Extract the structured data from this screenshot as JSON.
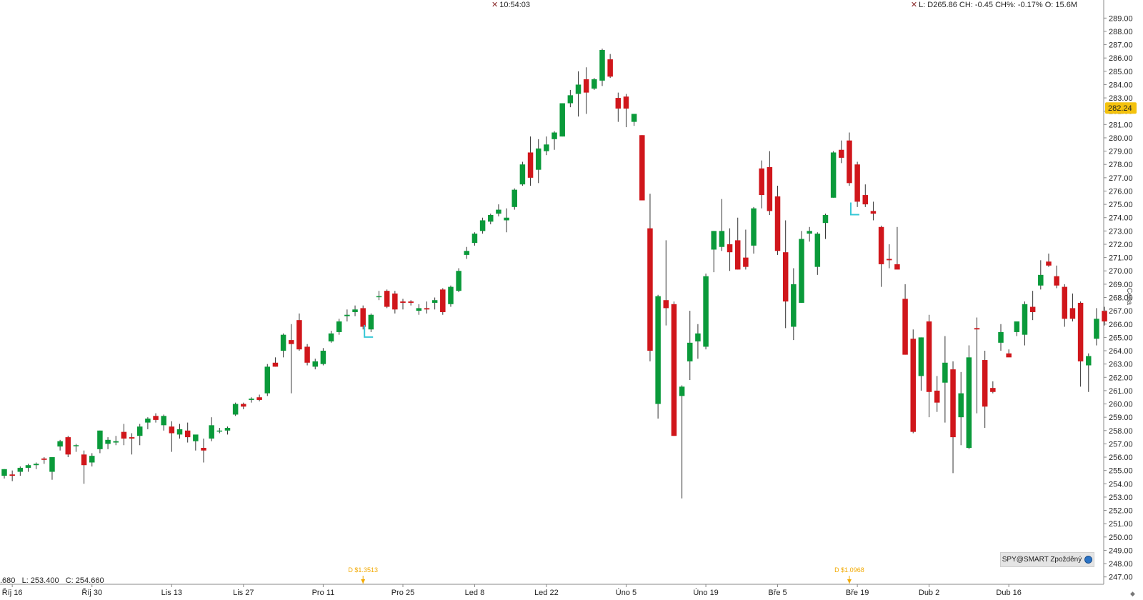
{
  "header": {
    "time_readout": "10:54:03",
    "ohlc_readout": "L: D265.86 CH: -0.45 CH%: -0.17% O: 15.6M",
    "close_icon": "x-icon"
  },
  "bottom_readout": ".680   L: 253.400   C: 254.660",
  "instrument_badge": {
    "label": "SPY@SMART Zpožděný",
    "icon": "globe-icon"
  },
  "price_axis_title": "Cena",
  "colors": {
    "up": "#0a9a3a",
    "down": "#d0161b",
    "wick": "#333333",
    "last_price_bg": "#f4c20d",
    "dividend": "#f2a900",
    "marker": "#35c7d6"
  },
  "chart_data": {
    "type": "candlestick",
    "ylim": [
      246.5,
      289.5
    ],
    "y_ticks": [
      "289.00",
      "288.00",
      "287.00",
      "286.00",
      "285.00",
      "284.00",
      "283.00",
      "282.00",
      "281.00",
      "280.00",
      "279.00",
      "278.00",
      "277.00",
      "276.00",
      "275.00",
      "274.00",
      "273.00",
      "272.00",
      "271.00",
      "270.00",
      "269.00",
      "268.00",
      "267.00",
      "266.00",
      "265.00",
      "264.00",
      "263.00",
      "262.00",
      "261.00",
      "260.00",
      "259.00",
      "258.00",
      "257.00",
      "256.00",
      "255.00",
      "254.00",
      "253.00",
      "252.00",
      "251.00",
      "250.00",
      "249.00",
      "248.00",
      "247.00"
    ],
    "x_labels": [
      {
        "label": "Říj 16",
        "bar": 1
      },
      {
        "label": "Říj 30",
        "bar": 11
      },
      {
        "label": "Lis 13",
        "bar": 21
      },
      {
        "label": "Lis 27",
        "bar": 30
      },
      {
        "label": "Pro 11",
        "bar": 40
      },
      {
        "label": "Pro 25",
        "bar": 50
      },
      {
        "label": "Led 8",
        "bar": 59
      },
      {
        "label": "Led 22",
        "bar": 68
      },
      {
        "label": "Úno 5",
        "bar": 78
      },
      {
        "label": "Úno 19",
        "bar": 88
      },
      {
        "label": "Bře 5",
        "bar": 97
      },
      {
        "label": "Bře 19",
        "bar": 107
      },
      {
        "label": "Dub 2",
        "bar": 116
      },
      {
        "label": "Dub 16",
        "bar": 126
      }
    ],
    "last_price": "282.24",
    "dividends": [
      {
        "label": "D $1.3513",
        "bar": 45
      },
      {
        "label": "D $1.0968",
        "bar": 106
      }
    ],
    "markers": [
      {
        "bar": 45,
        "price": 265.4
      },
      {
        "bar": 106,
        "price": 274.6
      }
    ],
    "ohlc": [
      [
        254.6,
        255.1,
        254.4,
        255.1
      ],
      [
        254.7,
        255.0,
        254.2,
        254.6
      ],
      [
        254.9,
        255.3,
        254.6,
        255.2
      ],
      [
        255.2,
        255.5,
        254.9,
        255.4
      ],
      [
        255.4,
        255.6,
        255.1,
        255.5
      ],
      [
        255.9,
        256.0,
        255.5,
        255.8
      ],
      [
        254.9,
        256.0,
        254.3,
        256.0
      ],
      [
        256.8,
        257.3,
        256.5,
        257.2
      ],
      [
        257.5,
        257.6,
        256.0,
        256.2
      ],
      [
        256.9,
        257.0,
        256.4,
        256.9
      ],
      [
        256.2,
        256.5,
        254.0,
        255.4
      ],
      [
        255.6,
        256.3,
        255.3,
        256.1
      ],
      [
        256.6,
        258.0,
        256.3,
        258.0
      ],
      [
        257.0,
        257.5,
        256.6,
        257.3
      ],
      [
        257.1,
        257.6,
        256.9,
        257.2
      ],
      [
        257.9,
        258.5,
        256.9,
        257.4
      ],
      [
        257.5,
        257.8,
        256.2,
        257.4
      ],
      [
        257.6,
        258.5,
        256.9,
        258.3
      ],
      [
        258.6,
        259.0,
        258.1,
        258.9
      ],
      [
        259.1,
        259.3,
        258.6,
        258.8
      ],
      [
        258.4,
        259.2,
        258.0,
        259.1
      ],
      [
        258.3,
        258.7,
        256.4,
        257.8
      ],
      [
        257.7,
        258.5,
        257.4,
        258.1
      ],
      [
        258.0,
        258.6,
        257.1,
        257.5
      ],
      [
        257.2,
        257.6,
        256.5,
        257.7
      ],
      [
        256.7,
        257.4,
        255.6,
        256.5
      ],
      [
        257.4,
        259.0,
        257.2,
        258.4
      ],
      [
        258.0,
        258.2,
        257.8,
        258.0
      ],
      [
        258.0,
        258.3,
        257.7,
        258.2
      ],
      [
        259.2,
        260.1,
        259.1,
        260.0
      ],
      [
        260.0,
        260.1,
        259.6,
        259.8
      ],
      [
        260.3,
        260.5,
        260.1,
        260.4
      ],
      [
        260.5,
        260.7,
        260.2,
        260.3
      ],
      [
        260.8,
        263.0,
        260.6,
        262.8
      ],
      [
        263.1,
        263.5,
        262.8,
        262.8
      ],
      [
        264.0,
        265.3,
        263.5,
        265.2
      ],
      [
        264.8,
        266.0,
        260.8,
        264.5
      ],
      [
        266.3,
        266.8,
        264.0,
        264.1
      ],
      [
        264.3,
        264.5,
        262.9,
        263.1
      ],
      [
        262.8,
        263.4,
        262.6,
        263.2
      ],
      [
        263.0,
        264.2,
        262.9,
        264.0
      ],
      [
        264.7,
        265.5,
        264.6,
        265.3
      ],
      [
        265.4,
        266.4,
        265.2,
        266.2
      ],
      [
        266.6,
        267.1,
        266.2,
        266.7
      ],
      [
        266.9,
        267.4,
        266.6,
        267.1
      ],
      [
        267.2,
        267.4,
        265.6,
        265.8
      ],
      [
        265.6,
        266.8,
        265.4,
        266.7
      ],
      [
        268.1,
        268.5,
        267.8,
        268.1
      ],
      [
        268.5,
        268.6,
        267.2,
        267.3
      ],
      [
        268.3,
        268.5,
        266.8,
        267.1
      ],
      [
        267.7,
        267.9,
        267.1,
        267.6
      ],
      [
        267.7,
        267.8,
        267.4,
        267.6
      ],
      [
        267.0,
        267.5,
        266.7,
        267.2
      ],
      [
        267.2,
        267.7,
        266.8,
        267.1
      ],
      [
        267.6,
        268.0,
        267.1,
        267.8
      ],
      [
        268.6,
        268.7,
        266.7,
        266.9
      ],
      [
        267.5,
        268.9,
        267.3,
        268.8
      ],
      [
        268.5,
        270.2,
        268.4,
        270.0
      ],
      [
        271.2,
        271.8,
        270.9,
        271.5
      ],
      [
        272.1,
        272.9,
        271.9,
        272.8
      ],
      [
        273.0,
        274.0,
        272.8,
        273.8
      ],
      [
        273.7,
        274.3,
        273.5,
        274.2
      ],
      [
        274.3,
        275.0,
        274.1,
        274.6
      ],
      [
        273.8,
        274.7,
        272.9,
        274.0
      ],
      [
        274.8,
        276.2,
        274.6,
        276.1
      ],
      [
        276.5,
        278.2,
        276.4,
        278.0
      ],
      [
        278.9,
        280.1,
        276.4,
        277.0
      ],
      [
        277.6,
        279.9,
        276.6,
        279.2
      ],
      [
        279.0,
        280.1,
        278.7,
        279.5
      ],
      [
        279.9,
        280.5,
        279.1,
        280.4
      ],
      [
        280.1,
        282.6,
        280.1,
        282.6
      ],
      [
        282.6,
        283.6,
        282.3,
        283.2
      ],
      [
        283.3,
        285.0,
        281.6,
        284.0
      ],
      [
        284.4,
        285.3,
        281.8,
        283.4
      ],
      [
        283.7,
        284.5,
        283.6,
        284.4
      ],
      [
        284.3,
        286.7,
        283.9,
        286.6
      ],
      [
        285.9,
        286.3,
        284.5,
        284.6
      ],
      [
        283.0,
        283.4,
        281.2,
        282.2
      ],
      [
        283.1,
        283.3,
        280.8,
        282.2
      ],
      [
        281.2,
        281.7,
        280.9,
        281.8
      ],
      [
        280.2,
        280.2,
        275.3,
        275.3
      ],
      [
        273.2,
        275.8,
        263.2,
        264.0
      ],
      [
        260.0,
        268.2,
        258.9,
        268.1
      ],
      [
        267.8,
        272.3,
        265.9,
        267.2
      ],
      [
        267.5,
        267.7,
        257.6,
        257.6
      ],
      [
        260.6,
        261.4,
        252.9,
        261.3
      ],
      [
        263.2,
        267.0,
        261.8,
        264.6
      ],
      [
        264.7,
        266.0,
        263.4,
        265.3
      ],
      [
        264.3,
        269.8,
        264.1,
        269.6
      ],
      [
        271.6,
        273.0,
        269.9,
        273.0
      ],
      [
        271.8,
        275.4,
        271.5,
        273.0
      ],
      [
        272.0,
        273.2,
        270.0,
        271.4
      ],
      [
        272.3,
        274.0,
        270.1,
        270.1
      ],
      [
        271.0,
        273.1,
        270.1,
        270.3
      ],
      [
        271.9,
        274.8,
        271.3,
        274.7
      ],
      [
        277.7,
        278.3,
        274.7,
        275.7
      ],
      [
        277.8,
        279.0,
        274.2,
        274.5
      ],
      [
        275.6,
        276.4,
        271.2,
        271.5
      ],
      [
        271.4,
        273.8,
        265.7,
        267.7
      ],
      [
        265.8,
        270.2,
        264.8,
        269.0
      ],
      [
        267.6,
        273.0,
        267.6,
        272.4
      ],
      [
        272.8,
        273.3,
        272.2,
        273.0
      ],
      [
        270.3,
        272.9,
        269.7,
        272.8
      ],
      [
        273.6,
        274.3,
        272.4,
        274.2
      ],
      [
        275.5,
        279.0,
        275.5,
        278.9
      ],
      [
        279.1,
        279.8,
        278.1,
        278.5
      ],
      [
        279.8,
        280.4,
        276.4,
        276.6
      ],
      [
        278.0,
        278.2,
        274.8,
        275.2
      ],
      [
        275.7,
        276.5,
        274.8,
        275.0
      ],
      [
        274.5,
        275.2,
        273.8,
        274.3
      ],
      [
        273.3,
        273.4,
        268.8,
        270.5
      ],
      [
        270.9,
        272.0,
        270.2,
        270.8
      ],
      [
        270.5,
        273.3,
        270.2,
        270.1
      ],
      [
        267.9,
        269.0,
        263.7,
        263.7
      ],
      [
        264.9,
        265.6,
        257.8,
        257.9
      ],
      [
        262.1,
        265.0,
        261.0,
        265.0
      ],
      [
        266.2,
        266.7,
        259.0,
        260.9
      ],
      [
        261.0,
        262.1,
        259.4,
        260.1
      ],
      [
        261.6,
        265.1,
        258.6,
        263.1
      ],
      [
        262.6,
        263.2,
        254.8,
        257.5
      ],
      [
        259.0,
        262.4,
        256.9,
        260.8
      ],
      [
        256.7,
        264.4,
        256.6,
        263.5
      ],
      [
        265.7,
        266.5,
        259.3,
        265.6
      ],
      [
        263.3,
        264.0,
        258.2,
        259.8
      ],
      [
        261.2,
        261.7,
        260.8,
        260.9
      ],
      [
        264.6,
        266.0,
        264.0,
        265.4
      ],
      [
        263.8,
        264.1,
        263.6,
        263.5
      ],
      [
        265.4,
        266.0,
        265.1,
        266.2
      ],
      [
        265.2,
        267.7,
        264.4,
        267.5
      ],
      [
        267.3,
        268.5,
        266.3,
        266.9
      ],
      [
        268.9,
        270.8,
        268.6,
        269.7
      ],
      [
        270.7,
        271.3,
        270.3,
        270.4
      ],
      [
        269.6,
        270.4,
        268.7,
        268.9
      ],
      [
        268.8,
        269.0,
        265.8,
        266.4
      ],
      [
        267.2,
        268.3,
        266.2,
        266.4
      ],
      [
        267.6,
        267.7,
        261.3,
        263.2
      ],
      [
        262.9,
        263.8,
        260.9,
        263.6
      ],
      [
        264.9,
        267.2,
        264.4,
        266.4
      ],
      [
        267.0,
        267.3,
        265.9,
        266.2
      ]
    ]
  }
}
